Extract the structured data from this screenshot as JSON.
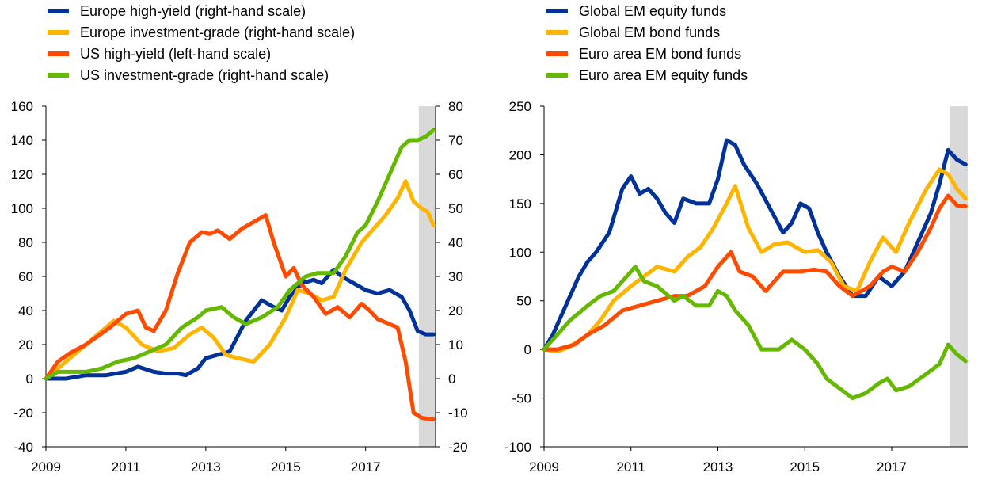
{
  "chart_data": [
    {
      "type": "line",
      "xlabel": "",
      "x_tick_labels": [
        "2009",
        "2011",
        "2013",
        "2015",
        "2017"
      ],
      "x_ticks": [
        2009,
        2011,
        2013,
        2015,
        2017
      ],
      "xlim": [
        2009,
        2018.75
      ],
      "ylim_left": [
        -40,
        160
      ],
      "yticks_left": [
        -40,
        -20,
        0,
        20,
        40,
        60,
        80,
        100,
        120,
        140,
        160
      ],
      "ylim_right": [
        -20,
        80
      ],
      "yticks_right": [
        -20,
        -10,
        0,
        10,
        20,
        30,
        40,
        50,
        60,
        70,
        80
      ],
      "shaded_region": [
        2018.33,
        2018.75
      ],
      "legend_position": "top-left",
      "series": [
        {
          "name": "Europe high-yield (right-hand scale)",
          "axis": "right",
          "color": "#003299",
          "x": [
            2009,
            2009.5,
            2010,
            2010.5,
            2011,
            2011.3,
            2011.7,
            2012,
            2012.3,
            2012.5,
            2012.8,
            2013,
            2013.3,
            2013.6,
            2014,
            2014.4,
            2014.7,
            2014.9,
            2015.1,
            2015.4,
            2015.7,
            2015.9,
            2016.2,
            2016.4,
            2016.7,
            2017,
            2017.3,
            2017.6,
            2017.9,
            2018.1,
            2018.3,
            2018.5,
            2018.7
          ],
          "values": [
            0,
            0,
            1,
            1,
            2,
            3.5,
            2,
            1.5,
            1.5,
            1,
            3,
            6,
            7,
            8,
            17,
            23,
            21,
            20,
            24,
            28,
            29,
            28,
            32,
            30,
            28,
            26,
            25,
            26,
            24,
            20,
            14,
            13,
            13
          ]
        },
        {
          "name": "Europe investment-grade (right-hand scale)",
          "axis": "right",
          "color": "#FFB400",
          "x": [
            2009,
            2009.3,
            2009.6,
            2010,
            2010.3,
            2010.7,
            2011,
            2011.4,
            2011.8,
            2012.2,
            2012.6,
            2012.9,
            2013.2,
            2013.5,
            2013.8,
            2014.2,
            2014.6,
            2015,
            2015.3,
            2015.6,
            2015.9,
            2016.2,
            2016.5,
            2016.9,
            2017.2,
            2017.5,
            2017.8,
            2018,
            2018.2,
            2018.4,
            2018.55,
            2018.7
          ],
          "values": [
            0,
            3,
            6,
            10,
            13,
            17,
            15,
            10,
            8,
            9,
            13,
            15,
            12,
            7,
            6,
            5,
            10,
            18,
            26,
            25,
            23,
            24,
            32,
            40,
            44,
            48,
            53,
            58,
            52,
            50,
            49,
            45
          ]
        },
        {
          "name": "US high-yield (left-hand scale)",
          "axis": "left",
          "color": "#FF4B00",
          "x": [
            2009,
            2009.3,
            2009.6,
            2010,
            2010.3,
            2010.6,
            2011,
            2011.3,
            2011.5,
            2011.7,
            2012,
            2012.3,
            2012.6,
            2012.9,
            2013.1,
            2013.3,
            2013.6,
            2013.9,
            2014.2,
            2014.5,
            2014.7,
            2015,
            2015.2,
            2015.4,
            2015.7,
            2016,
            2016.3,
            2016.6,
            2016.9,
            2017.1,
            2017.3,
            2017.6,
            2017.8,
            2018,
            2018.2,
            2018.4,
            2018.7
          ],
          "values": [
            0,
            10,
            15,
            20,
            25,
            30,
            38,
            40,
            30,
            28,
            40,
            62,
            80,
            86,
            85,
            87,
            82,
            88,
            92,
            96,
            80,
            60,
            65,
            55,
            48,
            38,
            42,
            36,
            44,
            40,
            35,
            32,
            30,
            10,
            -20,
            -23,
            -24
          ]
        },
        {
          "name": "US investment-grade (right-hand scale)",
          "axis": "right",
          "color": "#65B800",
          "x": [
            2009,
            2009.3,
            2009.7,
            2010,
            2010.4,
            2010.8,
            2011.2,
            2011.6,
            2012,
            2012.4,
            2012.8,
            2013,
            2013.4,
            2013.7,
            2014,
            2014.4,
            2014.8,
            2015.1,
            2015.5,
            2015.8,
            2016.2,
            2016.5,
            2016.8,
            2017,
            2017.3,
            2017.6,
            2017.9,
            2018.1,
            2018.3,
            2018.5,
            2018.7
          ],
          "values": [
            0,
            2,
            2,
            2,
            3,
            5,
            6,
            8,
            10,
            15,
            18,
            20,
            21,
            18,
            16,
            18,
            21,
            26,
            30,
            31,
            31,
            36,
            43,
            45,
            52,
            60,
            68,
            70,
            70,
            71,
            73
          ]
        }
      ]
    },
    {
      "type": "line",
      "xlabel": "",
      "x_tick_labels": [
        "2009",
        "2011",
        "2013",
        "2015",
        "2017"
      ],
      "x_ticks": [
        2009,
        2011,
        2013,
        2015,
        2017
      ],
      "xlim": [
        2009,
        2018.75
      ],
      "ylim": [
        -100,
        250
      ],
      "yticks": [
        -100,
        -50,
        0,
        50,
        100,
        150,
        200,
        250
      ],
      "shaded_region": [
        2018.33,
        2018.75
      ],
      "legend_position": "top-left",
      "series": [
        {
          "name": "Global EM equity funds",
          "color": "#003299",
          "x": [
            2009,
            2009.2,
            2009.5,
            2009.8,
            2010,
            2010.2,
            2010.5,
            2010.8,
            2011,
            2011.2,
            2011.4,
            2011.6,
            2011.8,
            2012,
            2012.2,
            2012.5,
            2012.8,
            2013,
            2013.2,
            2013.4,
            2013.6,
            2013.9,
            2014.2,
            2014.5,
            2014.7,
            2014.9,
            2015.1,
            2015.3,
            2015.5,
            2015.8,
            2016.1,
            2016.4,
            2016.7,
            2017,
            2017.3,
            2017.6,
            2017.9,
            2018.1,
            2018.3,
            2018.5,
            2018.7
          ],
          "values": [
            0,
            15,
            45,
            75,
            90,
            100,
            120,
            165,
            178,
            160,
            165,
            155,
            140,
            130,
            155,
            150,
            150,
            175,
            215,
            210,
            190,
            170,
            145,
            120,
            130,
            150,
            145,
            120,
            100,
            75,
            55,
            55,
            75,
            65,
            80,
            110,
            140,
            170,
            205,
            195,
            190
          ]
        },
        {
          "name": "Global EM bond funds",
          "color": "#FFB400",
          "x": [
            2009,
            2009.3,
            2009.6,
            2010,
            2010.3,
            2010.6,
            2011,
            2011.3,
            2011.6,
            2012,
            2012.3,
            2012.6,
            2012.9,
            2013.2,
            2013.4,
            2013.7,
            2014,
            2014.3,
            2014.6,
            2015,
            2015.3,
            2015.6,
            2015.9,
            2016.2,
            2016.5,
            2016.8,
            2017.1,
            2017.4,
            2017.8,
            2018.1,
            2018.3,
            2018.5,
            2018.7
          ],
          "values": [
            0,
            -2,
            3,
            15,
            30,
            50,
            65,
            75,
            85,
            80,
            95,
            105,
            125,
            150,
            168,
            125,
            100,
            108,
            110,
            100,
            102,
            90,
            65,
            60,
            90,
            115,
            100,
            130,
            165,
            185,
            180,
            165,
            155
          ]
        },
        {
          "name": "Euro area EM bond funds",
          "color": "#FF4B00",
          "x": [
            2009,
            2009.3,
            2009.7,
            2010,
            2010.4,
            2010.8,
            2011.2,
            2011.6,
            2012,
            2012.3,
            2012.7,
            2013,
            2013.3,
            2013.5,
            2013.8,
            2014.1,
            2014.5,
            2014.9,
            2015.2,
            2015.5,
            2015.8,
            2016.1,
            2016.5,
            2016.8,
            2017,
            2017.3,
            2017.6,
            2017.9,
            2018.1,
            2018.3,
            2018.5,
            2018.7
          ],
          "values": [
            0,
            0,
            5,
            15,
            25,
            40,
            45,
            50,
            55,
            55,
            65,
            85,
            100,
            80,
            75,
            60,
            80,
            80,
            82,
            80,
            65,
            55,
            65,
            80,
            85,
            80,
            100,
            125,
            145,
            158,
            148,
            147
          ]
        },
        {
          "name": "Euro area EM equity funds",
          "color": "#65B800",
          "x": [
            2009,
            2009.3,
            2009.6,
            2010,
            2010.3,
            2010.6,
            2010.9,
            2011.1,
            2011.3,
            2011.6,
            2012,
            2012.2,
            2012.5,
            2012.8,
            2013,
            2013.2,
            2013.4,
            2013.7,
            2014,
            2014.4,
            2014.7,
            2015,
            2015.3,
            2015.5,
            2015.8,
            2016.1,
            2016.4,
            2016.7,
            2016.9,
            2017.1,
            2017.4,
            2017.8,
            2018.1,
            2018.3,
            2018.5,
            2018.7
          ],
          "values": [
            0,
            15,
            30,
            45,
            55,
            60,
            75,
            85,
            70,
            65,
            50,
            55,
            45,
            45,
            60,
            55,
            40,
            25,
            0,
            0,
            10,
            0,
            -15,
            -30,
            -40,
            -50,
            -45,
            -35,
            -30,
            -42,
            -38,
            -25,
            -15,
            5,
            -5,
            -12
          ]
        }
      ]
    }
  ]
}
